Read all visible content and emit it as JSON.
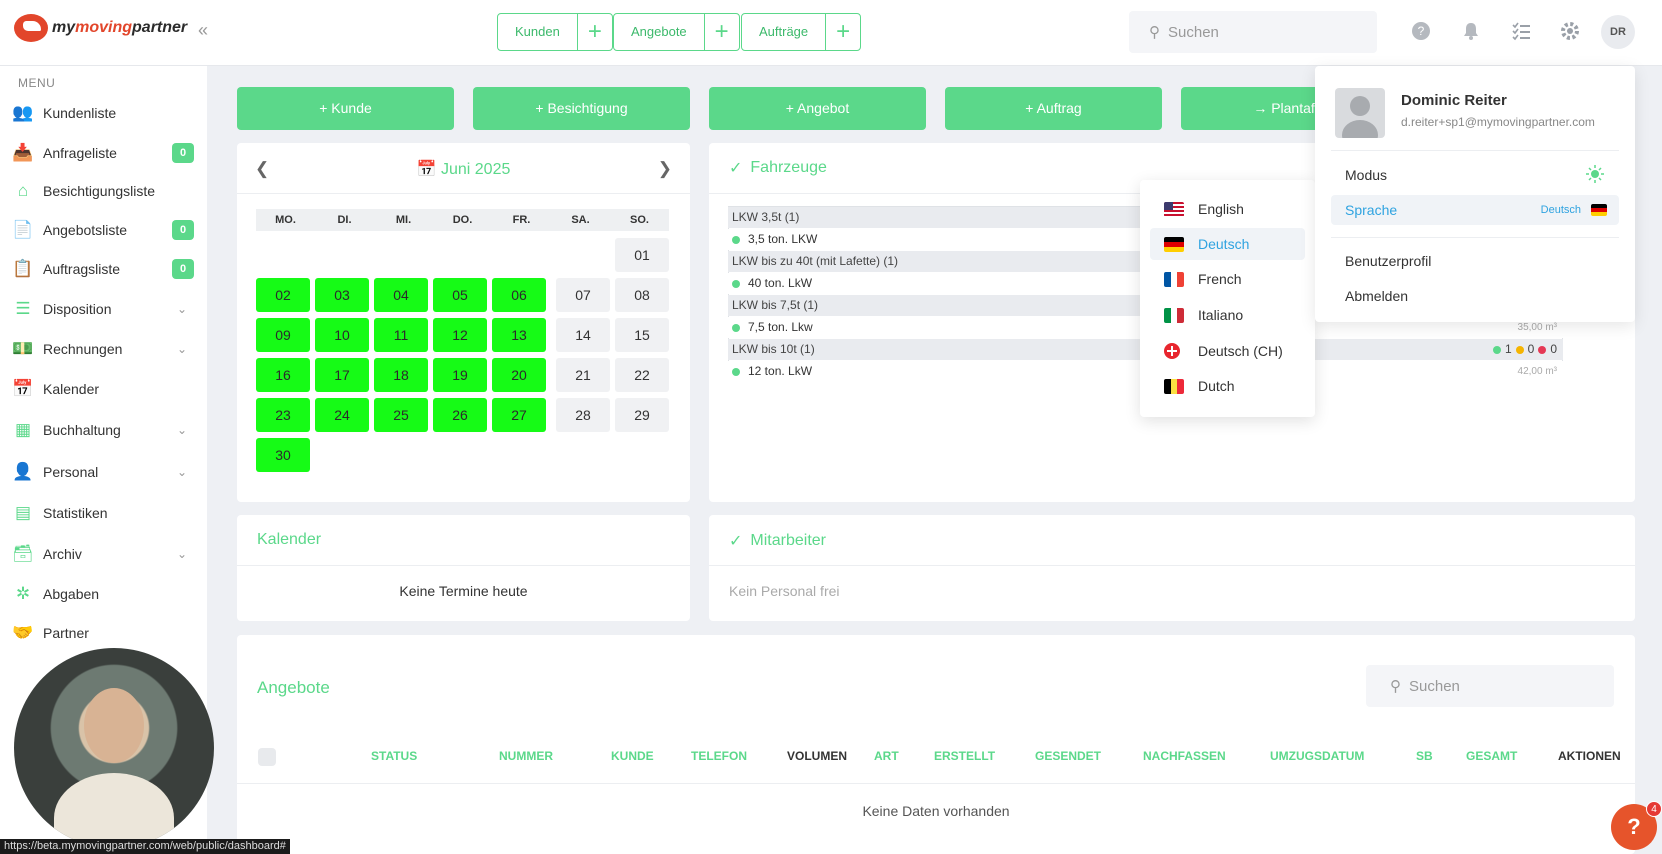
{
  "logo": {
    "brand_prefix": "my",
    "brand_middle": "moving",
    "brand_suffix": "partner",
    "collapse": "«"
  },
  "topbar": {
    "quick": [
      {
        "label": "Kunden",
        "plus": "+"
      },
      {
        "label": "Angebote",
        "plus": "+"
      },
      {
        "label": "Aufträge",
        "plus": "+"
      }
    ],
    "search_placeholder": "Suchen",
    "avatar_initials": "DR"
  },
  "sidebar": {
    "menu_title": "MENU",
    "items": [
      {
        "label": "Kundenliste",
        "badge": "",
        "chevron": false,
        "icon": "users-icon"
      },
      {
        "label": "Anfrageliste",
        "badge": "0",
        "chevron": false,
        "icon": "inbox-icon"
      },
      {
        "label": "Besichtigungsliste",
        "badge": "",
        "chevron": false,
        "icon": "house-icon"
      },
      {
        "label": "Angebotsliste",
        "badge": "0",
        "chevron": false,
        "icon": "document-icon"
      },
      {
        "label": "Auftragsliste",
        "badge": "0",
        "chevron": false,
        "icon": "clipboard-icon"
      },
      {
        "label": "Disposition",
        "badge": "",
        "chevron": true,
        "icon": "gantt-icon"
      },
      {
        "label": "Rechnungen",
        "badge": "",
        "chevron": true,
        "icon": "money-icon"
      },
      {
        "label": "Kalender",
        "badge": "",
        "chevron": false,
        "icon": "calendar-icon"
      },
      {
        "label": "Buchhaltung",
        "badge": "",
        "chevron": true,
        "icon": "grid-icon"
      },
      {
        "label": "Personal",
        "badge": "",
        "chevron": true,
        "icon": "person-clock-icon"
      },
      {
        "label": "Statistiken",
        "badge": "",
        "chevron": false,
        "icon": "stats-icon"
      },
      {
        "label": "Archiv",
        "badge": "",
        "chevron": true,
        "icon": "archive-icon"
      },
      {
        "label": "Abgaben",
        "badge": "",
        "chevron": false,
        "icon": "network-icon"
      },
      {
        "label": "Partner",
        "badge": "",
        "chevron": false,
        "icon": "handshake-icon"
      }
    ]
  },
  "actions": [
    "+ Kunde",
    "+ Besichtigung",
    "+ Angebot",
    "+ Auftrag",
    "→ Plantafel"
  ],
  "calendar": {
    "title": "Juni 2025",
    "weekdays": [
      "MO.",
      "DI.",
      "MI.",
      "DO.",
      "FR.",
      "SA.",
      "SO."
    ],
    "rows": [
      [
        "",
        "",
        "",
        "",
        "",
        "",
        "01"
      ],
      [
        "02",
        "03",
        "04",
        "05",
        "06",
        "07",
        "08"
      ],
      [
        "09",
        "10",
        "11",
        "12",
        "13",
        "14",
        "15"
      ],
      [
        "16",
        "17",
        "18",
        "19",
        "20",
        "21",
        "22"
      ],
      [
        "23",
        "24",
        "25",
        "26",
        "27",
        "28",
        "29"
      ],
      [
        "30",
        "",
        "",
        "",
        "",
        "",
        ""
      ]
    ],
    "green_days": [
      "02",
      "03",
      "04",
      "05",
      "06",
      "09",
      "10",
      "11",
      "12",
      "13",
      "16",
      "17",
      "18",
      "19",
      "20",
      "23",
      "24",
      "25",
      "26",
      "27",
      "30"
    ]
  },
  "vehicles": {
    "title": "Fahrzeuge",
    "rows": [
      {
        "type": "group",
        "label": "LKW 3,5t (1)"
      },
      {
        "type": "item",
        "label": "3,5 ton. LKW",
        "volume": ""
      },
      {
        "type": "group",
        "label": "LKW bis zu 40t (mit Lafette) (1)"
      },
      {
        "type": "item",
        "label": "40 ton. LkW",
        "volume": ""
      },
      {
        "type": "group",
        "label": "LKW bis 7,5t (1)"
      },
      {
        "type": "item",
        "label": "7,5 ton. Lkw",
        "volume": "35,00 m³"
      },
      {
        "type": "group",
        "label": "LKW bis 10t (1)",
        "counts": [
          "1",
          "0",
          "0"
        ]
      },
      {
        "type": "item",
        "label": "12 ton. LkW",
        "volume": "42,00 m³"
      }
    ]
  },
  "kalender_card": {
    "title": "Kalender",
    "empty": "Keine Termine heute"
  },
  "mitarbeiter_card": {
    "title": "Mitarbeiter",
    "empty": "Kein Personal frei"
  },
  "angebote": {
    "title": "Angebote",
    "search_placeholder": "Suchen",
    "columns": [
      "STATUS",
      "NUMMER",
      "KUNDE",
      "TELEFON",
      "VOLUMEN",
      "ART",
      "ERSTELLT",
      "GESENDET",
      "NACHFASSEN",
      "UMZUGSDATUM",
      "SB",
      "GESAMT",
      "AKTIONEN"
    ],
    "empty": "Keine Daten vorhanden"
  },
  "language_menu": {
    "items": [
      {
        "label": "English",
        "flag": "us-flag-icon"
      },
      {
        "label": "Deutsch",
        "flag": "de-flag-icon",
        "active": true
      },
      {
        "label": "French",
        "flag": "fr-flag-icon"
      },
      {
        "label": "Italiano",
        "flag": "it-flag-icon"
      },
      {
        "label": "Deutsch (CH)",
        "flag": "ch-flag-icon"
      },
      {
        "label": "Dutch",
        "flag": "be-flag-icon"
      }
    ]
  },
  "profile_menu": {
    "name": "Dominic Reiter",
    "email": "d.reiter+sp1@mymovingpartner.com",
    "modus": "Modus",
    "sprache": "Sprache",
    "sprache_value": "Deutsch",
    "benutzerprofil": "Benutzerprofil",
    "abmelden": "Abmelden"
  },
  "status_url": "https://beta.mymovingpartner.com/web/public/dashboard#",
  "help": {
    "label": "?",
    "badge": "4"
  },
  "colors": {
    "accent": "#5bd88a",
    "calendar_green": "#16fb16",
    "link_blue": "#2fa3e0",
    "brand_red": "#e2462b"
  }
}
